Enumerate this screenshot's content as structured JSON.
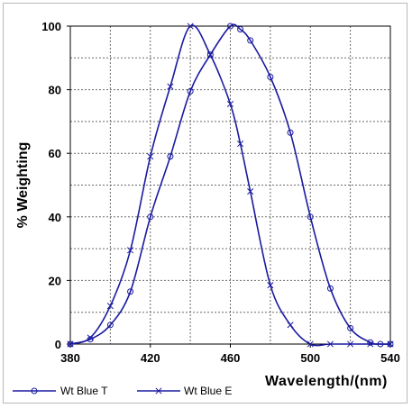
{
  "chart_data": {
    "type": "line",
    "xlabel": "Wavelength/(nm)",
    "ylabel": "% Weighting",
    "xlim": [
      380,
      540
    ],
    "ylim": [
      0,
      100
    ],
    "xticks": [
      380,
      420,
      460,
      500,
      540
    ],
    "yticks": [
      0,
      20,
      40,
      60,
      80,
      100
    ],
    "grid": true,
    "legend_position": "bottom-left",
    "series": [
      {
        "name": "Wt Blue T",
        "marker": "circle",
        "color": "#1a1aa0",
        "x": [
          380,
          390,
          400,
          410,
          420,
          430,
          440,
          450,
          460,
          465,
          470,
          480,
          490,
          500,
          510,
          520,
          530,
          535,
          540
        ],
        "y": [
          0,
          1.5,
          6,
          16.5,
          40,
          59,
          79.5,
          91,
          100,
          99,
          95.5,
          84,
          66.5,
          40,
          17.5,
          5,
          0.5,
          0,
          0
        ]
      },
      {
        "name": "Wt Blue E",
        "marker": "x",
        "color": "#1a1aa0",
        "x": [
          380,
          390,
          400,
          410,
          420,
          430,
          440,
          450,
          460,
          465,
          470,
          480,
          490,
          500,
          510,
          520,
          530,
          540
        ],
        "y": [
          0,
          2,
          12,
          29.5,
          59,
          81,
          100,
          91,
          75.5,
          63,
          48,
          18.5,
          6,
          0,
          0,
          0,
          0,
          0
        ]
      }
    ]
  },
  "colors": {
    "line": "#1a1aa0",
    "grid": "#6a6a6a",
    "axis": "#000000"
  }
}
